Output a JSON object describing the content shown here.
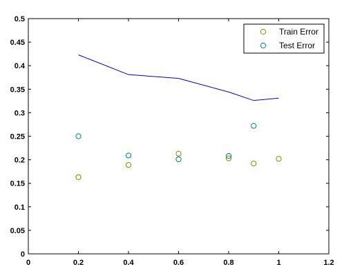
{
  "chart_data": {
    "type": "scatter",
    "title": "",
    "xlabel": "",
    "ylabel": "",
    "xlim": [
      0,
      1.2
    ],
    "ylim": [
      0,
      0.5
    ],
    "xticks": [
      "0",
      "0.2",
      "0.4",
      "0.6",
      "0.8",
      "1",
      "1.2"
    ],
    "yticks": [
      "0",
      "0.05",
      "0.1",
      "0.15",
      "0.2",
      "0.25",
      "0.3",
      "0.35",
      "0.4",
      "0.45",
      "0.5"
    ],
    "grid": false,
    "legend_position": "top-right",
    "series": [
      {
        "name": "Train Error",
        "kind": "scatter",
        "color": "#8a8a00",
        "x": [
          0.2,
          0.4,
          0.6,
          0.8,
          0.9,
          1.0
        ],
        "y": [
          0.163,
          0.189,
          0.213,
          0.203,
          0.192,
          0.202
        ]
      },
      {
        "name": "Test Error",
        "kind": "scatter",
        "color": "#008080",
        "x": [
          0.2,
          0.4,
          0.6,
          0.8,
          0.9
        ],
        "y": [
          0.25,
          0.209,
          0.201,
          0.208,
          0.272
        ]
      },
      {
        "kind": "line",
        "color": "#0000cc",
        "x": [
          0.2,
          0.4,
          0.6,
          0.8,
          0.9,
          1.0
        ],
        "y": [
          0.423,
          0.381,
          0.373,
          0.344,
          0.326,
          0.331
        ]
      }
    ]
  }
}
